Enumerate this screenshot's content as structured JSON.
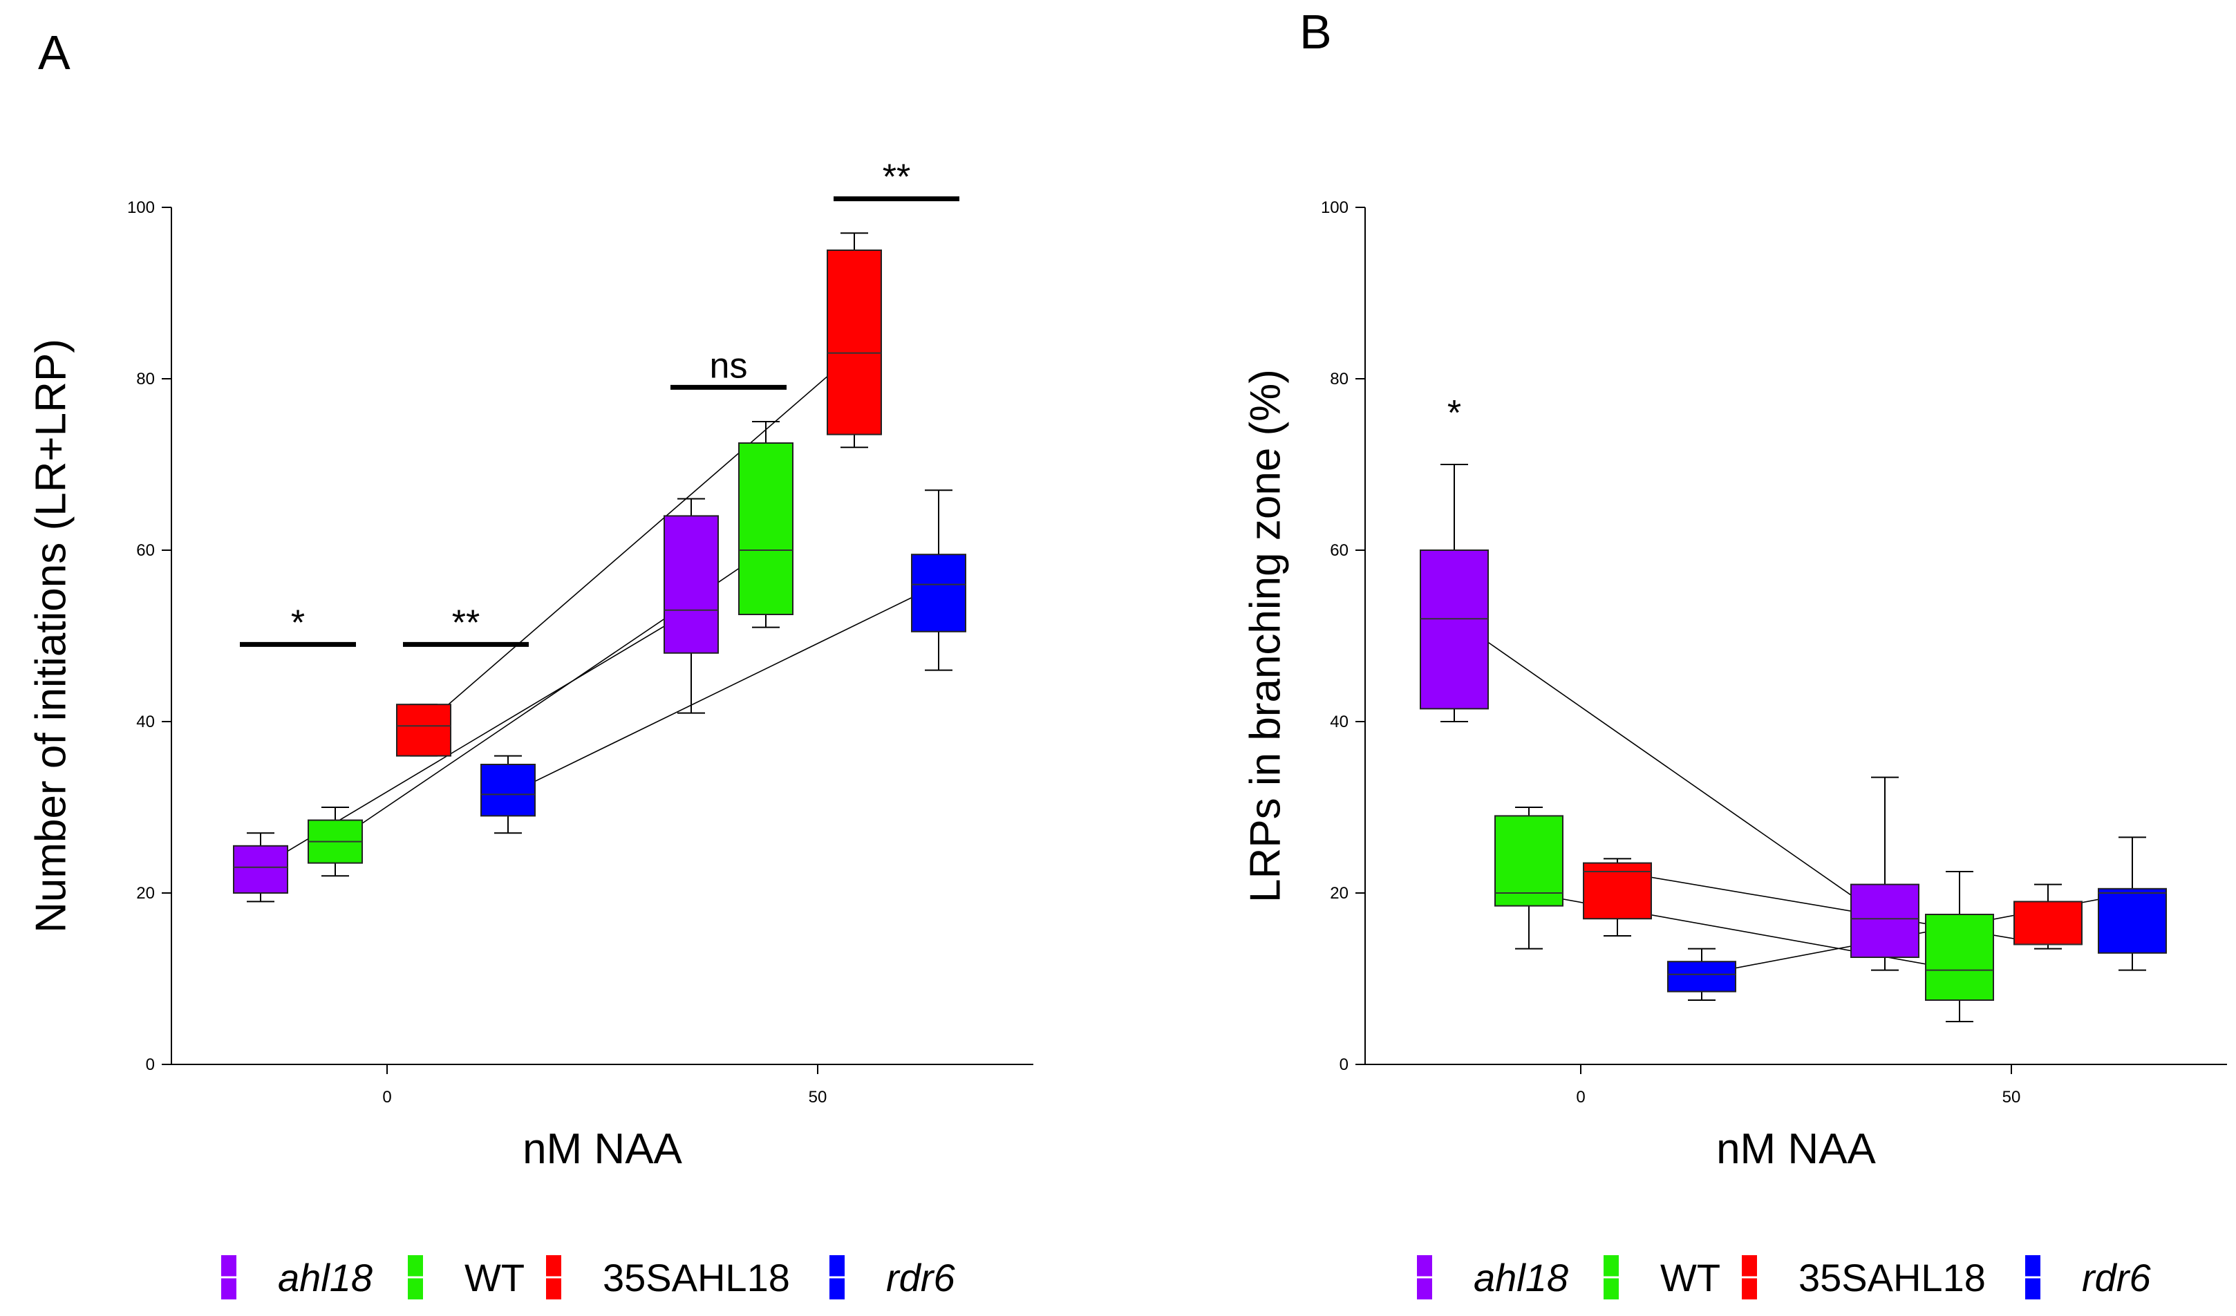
{
  "chart_data": [
    {
      "panel": "A",
      "type": "box",
      "xlabel": "nM NAA",
      "ylabel": "Number of initiations (LR+LRP)",
      "ylim": [
        0,
        100
      ],
      "yticks": [
        "0",
        "20",
        "40",
        "60",
        "80",
        "100"
      ],
      "xticks": [
        "0",
        "50"
      ],
      "categories": [
        "0",
        "50"
      ],
      "legend": [
        "ahl18",
        "WT",
        "35SAHL18",
        "rdr6"
      ],
      "series": [
        {
          "name": "ahl18",
          "color": "#9400ff",
          "boxes": [
            {
              "x": "0",
              "min": 19,
              "q1": 20,
              "median": 23,
              "q3": 25.5,
              "max": 27
            },
            {
              "x": "50",
              "min": 41,
              "q1": 48,
              "median": 53,
              "q3": 64,
              "max": 66
            }
          ]
        },
        {
          "name": "WT",
          "color": "#22ee00",
          "boxes": [
            {
              "x": "0",
              "min": 22,
              "q1": 23.5,
              "median": 26,
              "q3": 28.5,
              "max": 30
            },
            {
              "x": "50",
              "min": 51,
              "q1": 52.5,
              "median": 60,
              "q3": 72.5,
              "max": 75
            }
          ]
        },
        {
          "name": "35SAHL18",
          "color": "#ff0000",
          "boxes": [
            {
              "x": "0",
              "min": 36,
              "q1": 36,
              "median": 39.5,
              "q3": 42,
              "max": 42
            },
            {
              "x": "50",
              "min": 72,
              "q1": 73.5,
              "median": 83,
              "q3": 95,
              "max": 97
            }
          ]
        },
        {
          "name": "rdr6",
          "color": "#0000ff",
          "boxes": [
            {
              "x": "0",
              "min": 27,
              "q1": 29,
              "median": 31.5,
              "q3": 35,
              "max": 36
            },
            {
              "x": "50",
              "min": 46,
              "q1": 50.5,
              "median": 56,
              "q3": 59.5,
              "max": 67
            }
          ]
        }
      ],
      "annotations": [
        {
          "text": "*",
          "group": "0",
          "span": [
            0,
            1
          ],
          "y": 49
        },
        {
          "text": "**",
          "group": "0",
          "span": [
            2,
            3
          ],
          "y": 49
        },
        {
          "text": "ns",
          "group": "50",
          "span": [
            0,
            1
          ],
          "y": 79
        },
        {
          "text": "**",
          "group": "50",
          "span": [
            2,
            3
          ],
          "y": 101
        }
      ]
    },
    {
      "panel": "B",
      "type": "box",
      "xlabel": "nM NAA",
      "ylabel": "LRPs  in branching zone (%)",
      "ylim": [
        0,
        100
      ],
      "yticks": [
        "0",
        "20",
        "40",
        "60",
        "80",
        "100"
      ],
      "xticks": [
        "0",
        "50"
      ],
      "categories": [
        "0",
        "50"
      ],
      "legend": [
        "ahl18",
        "WT",
        "35SAHL18",
        "rdr6"
      ],
      "series": [
        {
          "name": "ahl18",
          "color": "#9400ff",
          "boxes": [
            {
              "x": "0",
              "min": 40,
              "q1": 41.5,
              "median": 52,
              "q3": 60,
              "max": 70
            },
            {
              "x": "50",
              "min": 11,
              "q1": 12.5,
              "median": 17,
              "q3": 21,
              "max": 33.5
            }
          ]
        },
        {
          "name": "WT",
          "color": "#22ee00",
          "boxes": [
            {
              "x": "0",
              "min": 13.5,
              "q1": 18.5,
              "median": 20,
              "q3": 29,
              "max": 30
            },
            {
              "x": "50",
              "min": 5,
              "q1": 7.5,
              "median": 11,
              "q3": 17.5,
              "max": 22.5
            }
          ]
        },
        {
          "name": "35SAHL18",
          "color": "#ff0000",
          "boxes": [
            {
              "x": "0",
              "min": 15,
              "q1": 17,
              "median": 22.5,
              "q3": 23.5,
              "max": 24
            },
            {
              "x": "50",
              "min": 13.5,
              "q1": 14,
              "median": 14,
              "q3": 19,
              "max": 21
            }
          ]
        },
        {
          "name": "rdr6",
          "color": "#0000ff",
          "boxes": [
            {
              "x": "0",
              "min": 7.5,
              "q1": 8.5,
              "median": 10.5,
              "q3": 12,
              "max": 13.5
            },
            {
              "x": "50",
              "min": 11,
              "q1": 13,
              "median": 20,
              "q3": 20.5,
              "max": 26.5
            }
          ]
        }
      ],
      "annotations": [
        {
          "text": "*",
          "group": "0",
          "span": [
            0,
            0
          ],
          "y": 77
        }
      ]
    }
  ]
}
